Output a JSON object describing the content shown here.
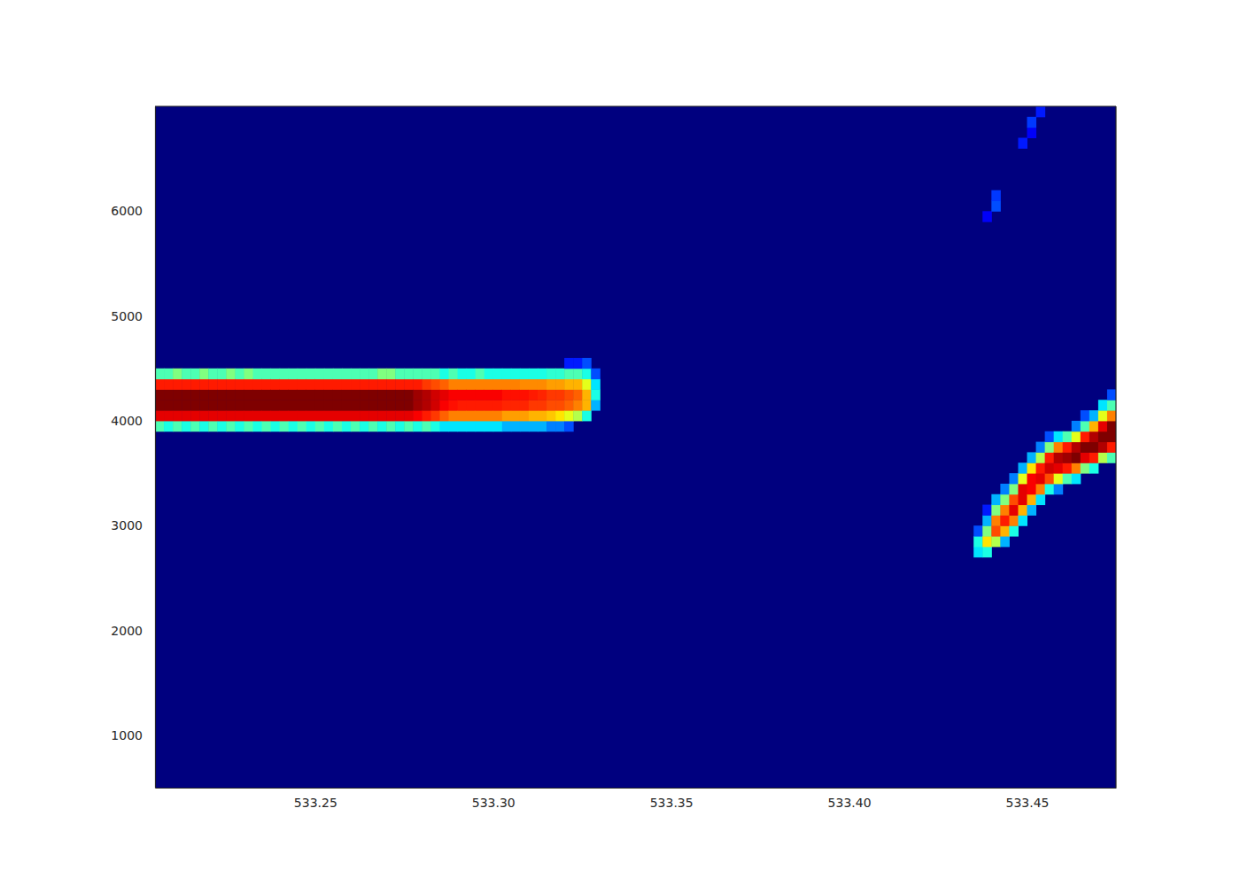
{
  "chart_data": {
    "type": "heatmap",
    "xlim": [
      533.205,
      533.475
    ],
    "ylim": [
      500,
      7000
    ],
    "xticks": [
      533.25,
      {
        "value": 533.3,
        "label": "533.30"
      },
      533.35,
      {
        "value": 533.4,
        "label": "533.40"
      },
      533.45
    ],
    "yticks": [
      1000,
      2000,
      3000,
      4000,
      5000,
      6000
    ],
    "zlim": [
      0,
      1
    ],
    "cell_width": 0.0025,
    "cell_height": 100,
    "columns": [
      {
        "x": 533.205,
        "y": 3900,
        "values": [
          0.45,
          0.9,
          1,
          1,
          0.85,
          0.45
        ]
      },
      {
        "x": 533.2075,
        "y": 3900,
        "values": [
          0.4,
          0.9,
          1,
          1,
          0.85,
          0.45
        ]
      },
      {
        "x": 533.21,
        "y": 3900,
        "values": [
          0.45,
          0.9,
          1,
          1,
          0.85,
          0.5
        ]
      },
      {
        "x": 533.2125,
        "y": 3900,
        "values": [
          0.4,
          0.9,
          1,
          1,
          0.85,
          0.45
        ]
      },
      {
        "x": 533.215,
        "y": 3900,
        "values": [
          0.45,
          0.9,
          1,
          1,
          0.85,
          0.45
        ]
      },
      {
        "x": 533.2175,
        "y": 3900,
        "values": [
          0.4,
          0.9,
          1,
          1,
          0.85,
          0.5
        ]
      },
      {
        "x": 533.22,
        "y": 3900,
        "values": [
          0.45,
          0.9,
          1,
          1,
          0.85,
          0.45
        ]
      },
      {
        "x": 533.2225,
        "y": 3900,
        "values": [
          0.4,
          0.9,
          1,
          1,
          0.85,
          0.45
        ]
      },
      {
        "x": 533.225,
        "y": 3900,
        "values": [
          0.45,
          0.9,
          1,
          1,
          0.85,
          0.5
        ]
      },
      {
        "x": 533.2275,
        "y": 3900,
        "values": [
          0.4,
          0.9,
          1,
          1,
          0.85,
          0.45
        ]
      },
      {
        "x": 533.23,
        "y": 3900,
        "values": [
          0.45,
          0.9,
          1,
          1,
          0.85,
          0.5
        ]
      },
      {
        "x": 533.2325,
        "y": 3900,
        "values": [
          0.4,
          0.9,
          1,
          1,
          0.85,
          0.45
        ]
      },
      {
        "x": 533.235,
        "y": 3900,
        "values": [
          0.45,
          0.9,
          1,
          1,
          0.85,
          0.45
        ]
      },
      {
        "x": 533.2375,
        "y": 3900,
        "values": [
          0.4,
          0.9,
          1,
          1,
          0.85,
          0.45
        ]
      },
      {
        "x": 533.24,
        "y": 3900,
        "values": [
          0.45,
          0.9,
          1,
          1,
          0.85,
          0.45
        ]
      },
      {
        "x": 533.2425,
        "y": 3900,
        "values": [
          0.4,
          0.9,
          1,
          1,
          0.85,
          0.45
        ]
      },
      {
        "x": 533.245,
        "y": 3900,
        "values": [
          0.45,
          0.9,
          1,
          1,
          0.85,
          0.45
        ]
      },
      {
        "x": 533.2475,
        "y": 3900,
        "values": [
          0.4,
          0.9,
          1,
          1,
          0.85,
          0.45
        ]
      },
      {
        "x": 533.25,
        "y": 3900,
        "values": [
          0.45,
          0.9,
          1,
          1,
          0.85,
          0.45
        ]
      },
      {
        "x": 533.2525,
        "y": 3900,
        "values": [
          0.4,
          0.9,
          1,
          1,
          0.85,
          0.45
        ]
      },
      {
        "x": 533.255,
        "y": 3900,
        "values": [
          0.45,
          0.9,
          1,
          1,
          0.85,
          0.45
        ]
      },
      {
        "x": 533.2575,
        "y": 3900,
        "values": [
          0.4,
          0.9,
          1,
          1,
          0.85,
          0.45
        ]
      },
      {
        "x": 533.26,
        "y": 3900,
        "values": [
          0.45,
          0.9,
          1,
          1,
          0.85,
          0.45
        ]
      },
      {
        "x": 533.2625,
        "y": 3900,
        "values": [
          0.4,
          0.9,
          1,
          1,
          0.85,
          0.45
        ]
      },
      {
        "x": 533.265,
        "y": 3900,
        "values": [
          0.45,
          0.9,
          1,
          1,
          0.85,
          0.45
        ]
      },
      {
        "x": 533.2675,
        "y": 3900,
        "values": [
          0.4,
          0.9,
          1,
          1,
          0.85,
          0.5
        ]
      },
      {
        "x": 533.27,
        "y": 3900,
        "values": [
          0.45,
          0.9,
          1,
          1,
          0.85,
          0.5
        ]
      },
      {
        "x": 533.2725,
        "y": 3900,
        "values": [
          0.4,
          0.9,
          1,
          1,
          0.85,
          0.45
        ]
      },
      {
        "x": 533.275,
        "y": 3900,
        "values": [
          0.45,
          0.9,
          1,
          1,
          0.85,
          0.45
        ]
      },
      {
        "x": 533.2775,
        "y": 3900,
        "values": [
          0.4,
          0.88,
          0.97,
          0.97,
          0.85,
          0.45
        ]
      },
      {
        "x": 533.28,
        "y": 3900,
        "values": [
          0.45,
          0.85,
          0.95,
          0.95,
          0.82,
          0.45
        ]
      },
      {
        "x": 533.2825,
        "y": 3900,
        "values": [
          0.4,
          0.82,
          0.92,
          0.92,
          0.8,
          0.45
        ]
      },
      {
        "x": 533.285,
        "y": 3900,
        "values": [
          0.35,
          0.78,
          0.88,
          0.9,
          0.78,
          0.4
        ]
      },
      {
        "x": 533.2875,
        "y": 3900,
        "values": [
          0.35,
          0.75,
          0.86,
          0.88,
          0.75,
          0.45
        ]
      },
      {
        "x": 533.29,
        "y": 3900,
        "values": [
          0.35,
          0.75,
          0.85,
          0.88,
          0.75,
          0.4
        ]
      },
      {
        "x": 533.2925,
        "y": 3900,
        "values": [
          0.35,
          0.75,
          0.85,
          0.88,
          0.75,
          0.4
        ]
      },
      {
        "x": 533.295,
        "y": 3900,
        "values": [
          0.35,
          0.75,
          0.85,
          0.88,
          0.75,
          0.45
        ]
      },
      {
        "x": 533.2975,
        "y": 3900,
        "values": [
          0.35,
          0.75,
          0.85,
          0.88,
          0.75,
          0.4
        ]
      },
      {
        "x": 533.3,
        "y": 3900,
        "values": [
          0.35,
          0.75,
          0.85,
          0.88,
          0.75,
          0.4
        ]
      },
      {
        "x": 533.3025,
        "y": 3900,
        "values": [
          0.3,
          0.72,
          0.84,
          0.86,
          0.75,
          0.4
        ]
      },
      {
        "x": 533.305,
        "y": 3900,
        "values": [
          0.3,
          0.72,
          0.84,
          0.86,
          0.75,
          0.4
        ]
      },
      {
        "x": 533.3075,
        "y": 3900,
        "values": [
          0.3,
          0.72,
          0.84,
          0.86,
          0.74,
          0.4
        ]
      },
      {
        "x": 533.31,
        "y": 3900,
        "values": [
          0.3,
          0.7,
          0.82,
          0.85,
          0.74,
          0.4
        ]
      },
      {
        "x": 533.3125,
        "y": 3900,
        "values": [
          0.3,
          0.7,
          0.82,
          0.84,
          0.74,
          0.4
        ]
      },
      {
        "x": 533.315,
        "y": 3900,
        "values": [
          0.25,
          0.68,
          0.8,
          0.82,
          0.72,
          0.42
        ]
      },
      {
        "x": 533.3175,
        "y": 3900,
        "values": [
          0.25,
          0.65,
          0.8,
          0.82,
          0.72,
          0.42
        ]
      },
      {
        "x": 533.32,
        "y": 3900,
        "values": [
          0.2,
          0.6,
          0.78,
          0.8,
          0.7,
          0.45,
          0.15
        ]
      },
      {
        "x": 533.3225,
        "y": 4000,
        "values": [
          0.55,
          0.75,
          0.78,
          0.7,
          0.45,
          0.15
        ]
      },
      {
        "x": 533.325,
        "y": 4000,
        "values": [
          0.4,
          0.7,
          0.7,
          0.6,
          0.4,
          0.2
        ]
      },
      {
        "x": 533.3275,
        "y": 4100,
        "values": [
          0.3,
          0.4,
          0.35,
          0.2
        ]
      },
      {
        "x": 533.435,
        "y": 2700,
        "values": [
          0.35,
          0.4,
          0.2
        ]
      },
      {
        "x": 533.4375,
        "y": 2700,
        "values": [
          0.4,
          0.65,
          0.5,
          0.3,
          0.15
        ]
      },
      {
        "x": 533.44,
        "y": 2800,
        "values": [
          0.55,
          0.8,
          0.75,
          0.5,
          0.3
        ]
      },
      {
        "x": 533.4425,
        "y": 2800,
        "values": [
          0.3,
          0.7,
          0.85,
          0.75,
          0.5,
          0.25
        ]
      },
      {
        "x": 533.445,
        "y": 2900,
        "values": [
          0.4,
          0.75,
          0.9,
          0.8,
          0.5,
          0.25
        ]
      },
      {
        "x": 533.4475,
        "y": 3000,
        "values": [
          0.35,
          0.7,
          0.9,
          0.9,
          0.6,
          0.3
        ]
      },
      {
        "x": 533.45,
        "y": 3100,
        "values": [
          0.3,
          0.7,
          0.88,
          0.88,
          0.65,
          0.3
        ]
      },
      {
        "x": 533.4525,
        "y": 3200,
        "values": [
          0.35,
          0.75,
          0.9,
          0.85,
          0.55,
          0.25
        ]
      },
      {
        "x": 533.455,
        "y": 3300,
        "values": [
          0.4,
          0.8,
          0.92,
          0.85,
          0.5,
          0.2
        ]
      },
      {
        "x": 533.4575,
        "y": 3300,
        "values": [
          0.25,
          0.6,
          0.9,
          0.95,
          0.75,
          0.35
        ]
      },
      {
        "x": 533.46,
        "y": 3400,
        "values": [
          0.45,
          0.85,
          0.97,
          0.85,
          0.45
        ]
      },
      {
        "x": 533.4625,
        "y": 3400,
        "values": [
          0.35,
          0.75,
          1,
          0.95,
          0.6,
          0.25
        ]
      },
      {
        "x": 533.465,
        "y": 3500,
        "values": [
          0.5,
          0.9,
          1,
          0.85,
          0.45,
          0.2
        ]
      },
      {
        "x": 533.4675,
        "y": 3500,
        "values": [
          0.4,
          0.85,
          1,
          0.95,
          0.7,
          0.3
        ]
      },
      {
        "x": 533.47,
        "y": 3600,
        "values": [
          0.55,
          0.95,
          1,
          0.9,
          0.6,
          0.35
        ]
      },
      {
        "x": 533.4725,
        "y": 3600,
        "values": [
          0.45,
          0.85,
          1,
          1,
          0.75,
          0.45,
          0.2
        ]
      },
      {
        "x": 533.4375,
        "y": 5900,
        "values": [
          0.12
        ]
      },
      {
        "x": 533.44,
        "y": 6000,
        "values": [
          0.2,
          0.18
        ]
      },
      {
        "x": 533.4475,
        "y": 6600,
        "values": [
          0.15
        ]
      },
      {
        "x": 533.45,
        "y": 6700,
        "values": [
          0.12,
          0.18
        ]
      },
      {
        "x": 533.4525,
        "y": 6900,
        "values": [
          0.15
        ]
      }
    ]
  }
}
